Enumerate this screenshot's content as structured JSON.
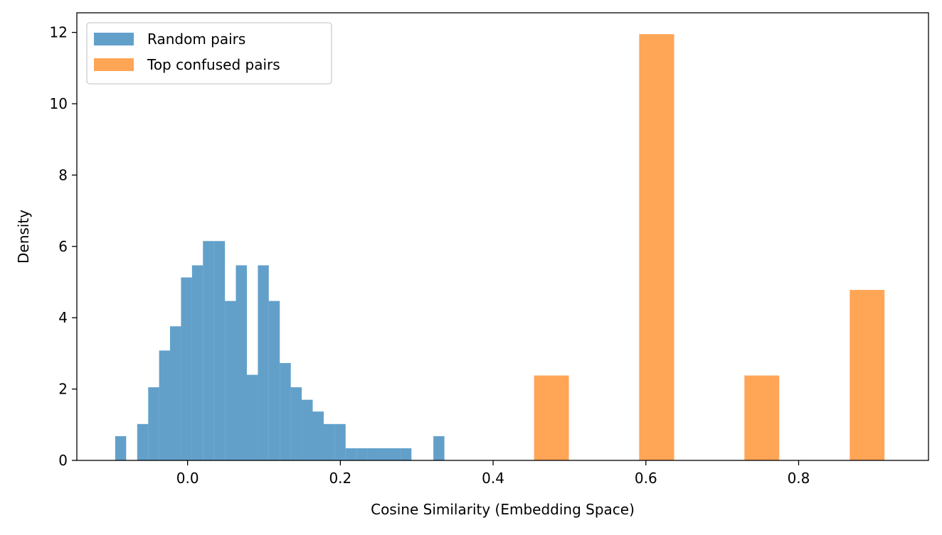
{
  "chart_data": {
    "type": "bar",
    "title": "",
    "xlabel": "Cosine Similarity (Embedding Space)",
    "ylabel": "Density",
    "xlim": [
      -0.145,
      0.97
    ],
    "ylim": [
      0,
      12.55
    ],
    "xticks": [
      0.0,
      0.2,
      0.4,
      0.6,
      0.8
    ],
    "xtick_labels": [
      "0.0",
      "0.2",
      "0.4",
      "0.6",
      "0.8"
    ],
    "yticks": [
      0,
      2,
      4,
      6,
      8,
      10,
      12
    ],
    "ytick_labels": [
      "0",
      "2",
      "4",
      "6",
      "8",
      "10",
      "12"
    ],
    "grid": false,
    "legend_position": "top-left",
    "series": [
      {
        "name": "Random pairs",
        "color": "#1f77b4",
        "opacity": 0.7,
        "bins": [
          {
            "x0": -0.0948,
            "x1": -0.0804,
            "y": 0.68
          },
          {
            "x0": -0.066,
            "x1": -0.0516,
            "y": 1.02
          },
          {
            "x0": -0.0516,
            "x1": -0.0373,
            "y": 2.05
          },
          {
            "x0": -0.0373,
            "x1": -0.023,
            "y": 3.08
          },
          {
            "x0": -0.023,
            "x1": -0.0086,
            "y": 3.76
          },
          {
            "x0": -0.0086,
            "x1": 0.0058,
            "y": 5.13
          },
          {
            "x0": 0.0058,
            "x1": 0.0201,
            "y": 5.47
          },
          {
            "x0": 0.0201,
            "x1": 0.0345,
            "y": 6.15
          },
          {
            "x0": 0.0345,
            "x1": 0.0489,
            "y": 6.15
          },
          {
            "x0": 0.0489,
            "x1": 0.0632,
            "y": 4.47
          },
          {
            "x0": 0.0632,
            "x1": 0.0776,
            "y": 5.47
          },
          {
            "x0": 0.0776,
            "x1": 0.092,
            "y": 2.4
          },
          {
            "x0": 0.092,
            "x1": 0.1063,
            "y": 5.47
          },
          {
            "x0": 0.1063,
            "x1": 0.1207,
            "y": 4.47
          },
          {
            "x0": 0.1207,
            "x1": 0.1351,
            "y": 2.73
          },
          {
            "x0": 0.1351,
            "x1": 0.1494,
            "y": 2.05
          },
          {
            "x0": 0.1494,
            "x1": 0.1638,
            "y": 1.7
          },
          {
            "x0": 0.1638,
            "x1": 0.1782,
            "y": 1.37
          },
          {
            "x0": 0.1782,
            "x1": 0.1925,
            "y": 1.02
          },
          {
            "x0": 0.1925,
            "x1": 0.2069,
            "y": 1.02
          },
          {
            "x0": 0.2069,
            "x1": 0.2213,
            "y": 0.34
          },
          {
            "x0": 0.2213,
            "x1": 0.2356,
            "y": 0.34
          },
          {
            "x0": 0.2356,
            "x1": 0.25,
            "y": 0.34
          },
          {
            "x0": 0.25,
            "x1": 0.2644,
            "y": 0.34
          },
          {
            "x0": 0.2644,
            "x1": 0.2787,
            "y": 0.34
          },
          {
            "x0": 0.2787,
            "x1": 0.2931,
            "y": 0.34
          },
          {
            "x0": 0.3218,
            "x1": 0.3362,
            "y": 0.68
          }
        ]
      },
      {
        "name": "Top confused pairs",
        "color": "#ff7f0e",
        "opacity": 0.7,
        "bins": [
          {
            "x0": 0.4536,
            "x1": 0.4992,
            "y": 2.38
          },
          {
            "x0": 0.5912,
            "x1": 0.637,
            "y": 11.95
          },
          {
            "x0": 0.729,
            "x1": 0.7746,
            "y": 2.38
          },
          {
            "x0": 0.8669,
            "x1": 0.9124,
            "y": 4.78
          }
        ]
      }
    ]
  }
}
